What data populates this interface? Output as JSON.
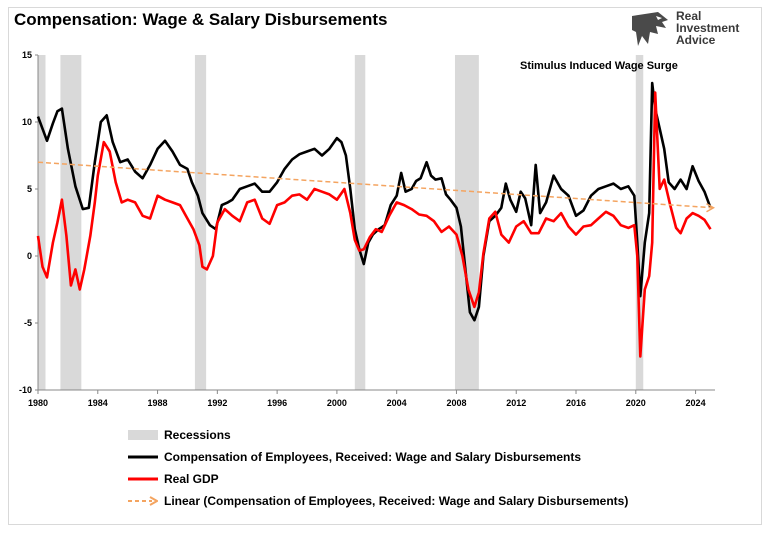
{
  "title": "Compensation: Wage & Salary Disbursements",
  "logo": {
    "line1": "Real",
    "line2": "Investment",
    "line3": "Advice"
  },
  "annotation": "Stimulus Induced Wage Surge",
  "colors": {
    "compensation": "#000000",
    "gdp": "#ff0000",
    "trend": "#f4a460",
    "recession": "#d9d9d9"
  },
  "legend": {
    "recessions": "Recessions",
    "compensation": "Compensation of Employees, Received: Wage and Salary Disbursements",
    "gdp": "Real GDP",
    "trend": "Linear (Compensation of Employees, Received: Wage and Salary Disbursements)"
  },
  "chart_data": {
    "type": "line",
    "ylim": [
      -10,
      15
    ],
    "yticks": [
      "15",
      "10",
      "5",
      "0",
      "-5",
      "-10"
    ],
    "xlim": [
      1980,
      2025.3
    ],
    "xticks": [
      "1980",
      "1984",
      "1988",
      "1992",
      "1996",
      "2000",
      "2004",
      "2008",
      "2012",
      "2016",
      "2020",
      "2024"
    ],
    "grid": false,
    "legend_placement": "bottom",
    "recessions": [
      [
        1980.0,
        1980.5
      ],
      [
        1981.5,
        1982.9
      ],
      [
        1990.5,
        1991.25
      ],
      [
        2001.2,
        2001.9
      ],
      [
        2007.9,
        2009.5
      ],
      [
        2020.0,
        2020.5
      ]
    ],
    "series": [
      {
        "name": "Compensation of Employees, Received: Wage and Salary Disbursements",
        "x": [
          1980.0,
          1980.3,
          1980.6,
          1981.0,
          1981.3,
          1981.6,
          1982.0,
          1982.5,
          1983.0,
          1983.4,
          1983.8,
          1984.2,
          1984.6,
          1985.0,
          1985.5,
          1986.0,
          1986.5,
          1987.0,
          1987.5,
          1988.0,
          1988.5,
          1989.0,
          1989.5,
          1990.0,
          1990.3,
          1990.7,
          1991.0,
          1991.5,
          1991.9,
          1992.3,
          1992.7,
          1993.0,
          1993.5,
          1994.0,
          1994.5,
          1995.0,
          1995.5,
          1996.0,
          1996.5,
          1997.0,
          1997.5,
          1998.0,
          1998.5,
          1999.0,
          1999.5,
          2000.0,
          2000.3,
          2000.6,
          2000.9,
          2001.2,
          2001.5,
          2001.8,
          2002.1,
          2002.4,
          2002.8,
          2003.2,
          2003.6,
          2004.0,
          2004.3,
          2004.6,
          2005.0,
          2005.3,
          2005.6,
          2006.0,
          2006.3,
          2006.6,
          2007.0,
          2007.3,
          2007.6,
          2008.0,
          2008.3,
          2008.6,
          2008.9,
          2009.2,
          2009.5,
          2009.8,
          2010.2,
          2010.6,
          2011.0,
          2011.3,
          2011.6,
          2012.0,
          2012.3,
          2012.6,
          2013.0,
          2013.3,
          2013.6,
          2014.0,
          2014.5,
          2015.0,
          2015.5,
          2016.0,
          2016.5,
          2017.0,
          2017.5,
          2018.0,
          2018.5,
          2019.0,
          2019.5,
          2019.9,
          2020.1,
          2020.3,
          2020.6,
          2020.9,
          2021.1,
          2021.3,
          2021.6,
          2021.9,
          2022.2,
          2022.6,
          2023.0,
          2023.4,
          2023.8,
          2024.2,
          2024.6,
          2025.0
        ],
        "values": [
          10.4,
          9.5,
          8.6,
          9.9,
          10.8,
          11.0,
          8.0,
          5.2,
          3.5,
          3.6,
          7.0,
          10.0,
          10.5,
          8.5,
          7.0,
          7.2,
          6.3,
          5.8,
          6.8,
          8.0,
          8.6,
          7.8,
          6.8,
          6.5,
          5.5,
          4.5,
          3.2,
          2.3,
          2.0,
          3.8,
          4.0,
          4.2,
          5.0,
          5.2,
          5.4,
          4.8,
          4.8,
          5.5,
          6.5,
          7.2,
          7.6,
          7.8,
          8.0,
          7.5,
          8.0,
          8.8,
          8.5,
          7.5,
          5.0,
          2.0,
          0.5,
          -0.6,
          1.0,
          1.6,
          2.0,
          2.3,
          3.8,
          4.5,
          6.2,
          4.8,
          5.0,
          5.6,
          5.8,
          7.0,
          6.0,
          5.7,
          5.8,
          4.6,
          4.2,
          3.6,
          2.2,
          -1.0,
          -4.2,
          -4.8,
          -3.8,
          0.0,
          2.6,
          3.0,
          3.6,
          5.4,
          4.2,
          3.3,
          4.8,
          4.3,
          2.3,
          6.8,
          3.2,
          4.0,
          6.0,
          5.0,
          4.5,
          3.0,
          3.4,
          4.5,
          5.0,
          5.2,
          5.4,
          5.0,
          5.2,
          4.5,
          1.0,
          -3.0,
          1.0,
          3.2,
          12.9,
          11.0,
          9.5,
          8.0,
          5.5,
          5.0,
          5.7,
          5.0,
          6.7,
          5.6,
          4.8,
          3.6
        ]
      },
      {
        "name": "Real GDP",
        "x": [
          1980.0,
          1980.3,
          1980.6,
          1981.0,
          1981.3,
          1981.6,
          1981.9,
          1982.2,
          1982.5,
          1982.8,
          1983.1,
          1983.5,
          1983.8,
          1984.0,
          1984.4,
          1984.8,
          1985.2,
          1985.6,
          1986.0,
          1986.5,
          1987.0,
          1987.5,
          1988.0,
          1988.5,
          1989.0,
          1989.5,
          1990.0,
          1990.4,
          1990.8,
          1991.0,
          1991.3,
          1991.7,
          1992.0,
          1992.5,
          1993.0,
          1993.5,
          1994.0,
          1994.5,
          1995.0,
          1995.5,
          1996.0,
          1996.5,
          1997.0,
          1997.5,
          1998.0,
          1998.5,
          1999.0,
          1999.5,
          2000.0,
          2000.5,
          2000.9,
          2001.2,
          2001.5,
          2001.8,
          2002.2,
          2002.6,
          2003.0,
          2003.5,
          2004.0,
          2004.5,
          2005.0,
          2005.5,
          2006.0,
          2006.5,
          2007.0,
          2007.5,
          2008.0,
          2008.4,
          2008.8,
          2009.2,
          2009.5,
          2009.8,
          2010.2,
          2010.6,
          2011.0,
          2011.5,
          2012.0,
          2012.5,
          2013.0,
          2013.5,
          2014.0,
          2014.5,
          2015.0,
          2015.5,
          2016.0,
          2016.5,
          2017.0,
          2017.5,
          2018.0,
          2018.5,
          2019.0,
          2019.5,
          2019.9,
          2020.1,
          2020.3,
          2020.6,
          2020.9,
          2021.1,
          2021.3,
          2021.6,
          2021.9,
          2022.3,
          2022.7,
          2023.0,
          2023.4,
          2023.8,
          2024.2,
          2024.6,
          2025.0
        ],
        "values": [
          1.5,
          -0.8,
          -1.6,
          1.0,
          2.5,
          4.2,
          1.5,
          -2.2,
          -1.0,
          -2.5,
          -1.0,
          1.5,
          4.0,
          6.0,
          8.5,
          7.8,
          5.5,
          4.0,
          4.2,
          4.0,
          3.0,
          2.8,
          4.5,
          4.2,
          4.0,
          3.8,
          2.8,
          2.0,
          0.8,
          -0.8,
          -1.0,
          0.0,
          2.5,
          3.5,
          3.0,
          2.6,
          4.0,
          4.2,
          2.8,
          2.4,
          3.8,
          4.0,
          4.5,
          4.6,
          4.2,
          5.0,
          4.8,
          4.6,
          4.2,
          5.0,
          3.2,
          1.2,
          0.4,
          0.5,
          1.4,
          2.0,
          1.8,
          3.0,
          4.0,
          3.8,
          3.5,
          3.1,
          3.0,
          2.6,
          1.8,
          2.2,
          1.6,
          0.0,
          -2.5,
          -3.8,
          -2.7,
          0.2,
          2.8,
          3.3,
          1.6,
          1.0,
          2.2,
          2.6,
          1.7,
          1.7,
          2.8,
          2.6,
          3.2,
          2.2,
          1.6,
          2.2,
          2.3,
          2.8,
          3.3,
          3.0,
          2.3,
          2.1,
          2.3,
          0.0,
          -7.5,
          -2.5,
          -1.5,
          1.0,
          12.2,
          5.0,
          5.7,
          3.8,
          2.1,
          1.7,
          2.8,
          3.2,
          3.0,
          2.7,
          2.0
        ]
      },
      {
        "name": "Linear (Compensation of Employees, Received: Wage and Salary Disbursements)",
        "type": "trend",
        "x": [
          1980.0,
          2025.2
        ],
        "values": [
          7.0,
          3.6
        ]
      }
    ]
  }
}
